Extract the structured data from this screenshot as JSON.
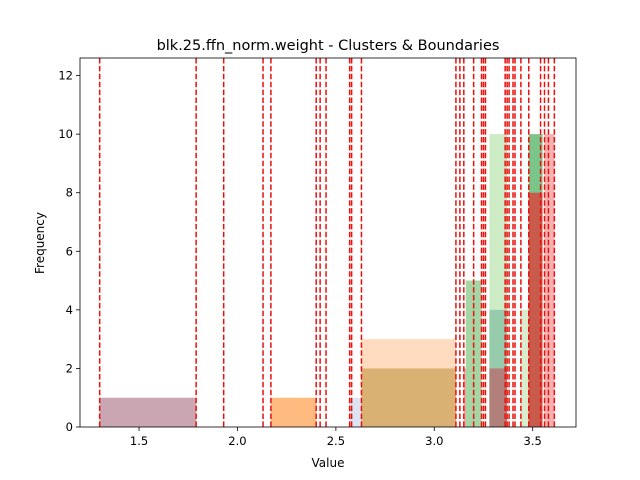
{
  "chart_data": {
    "type": "histogram",
    "title": "blk.25.ffn_norm.weight - Clusters & Boundaries",
    "xlabel": "Value",
    "ylabel": "Frequency",
    "xlim": [
      1.2,
      3.72
    ],
    "ylim": [
      0,
      12.6
    ],
    "x_ticks": [
      1.5,
      2.0,
      2.5,
      3.0,
      3.5
    ],
    "x_tick_labels": [
      "1.5",
      "2.0",
      "2.5",
      "3.0",
      "3.5"
    ],
    "y_ticks": [
      0,
      2,
      4,
      6,
      8,
      10,
      12
    ],
    "y_tick_labels": [
      "0",
      "2",
      "4",
      "6",
      "8",
      "10",
      "12"
    ],
    "grid": false,
    "series": [
      {
        "color": "#c9a6b1",
        "bars": [
          {
            "x0": 1.3,
            "x1": 1.79,
            "y": 1
          }
        ]
      },
      {
        "color": "#ffbb7f",
        "bars": [
          {
            "x0": 2.17,
            "x1": 2.4,
            "y": 1
          }
        ]
      },
      {
        "color": "#dde4f4",
        "bars": [
          {
            "x0": 2.57,
            "x1": 2.63,
            "y": 1
          }
        ]
      },
      {
        "color": "#ffdbbf",
        "bars": [
          {
            "x0": 2.63,
            "x1": 3.11,
            "y": 3
          }
        ]
      },
      {
        "color": "#d9b273",
        "bars": [
          {
            "x0": 2.63,
            "x1": 3.11,
            "y": 2
          }
        ]
      },
      {
        "color": "#f5a6a6",
        "bars": [
          {
            "x0": 3.15,
            "x1": 3.24,
            "y": 2
          }
        ]
      },
      {
        "color": "#a5d6a5",
        "bars": [
          {
            "x0": 3.16,
            "x1": 3.24,
            "y": 5
          }
        ]
      },
      {
        "color": "#cdebc5",
        "bars": [
          {
            "x0": 3.28,
            "x1": 3.37,
            "y": 10
          }
        ]
      },
      {
        "color": "#96cbab",
        "bars": [
          {
            "x0": 3.28,
            "x1": 3.37,
            "y": 4
          }
        ]
      },
      {
        "color": "#b1807b",
        "bars": [
          {
            "x0": 3.28,
            "x1": 3.37,
            "y": 2
          }
        ]
      },
      {
        "color": "#d9eccd",
        "bars": [
          {
            "x0": 3.44,
            "x1": 3.54,
            "y": 4
          }
        ]
      },
      {
        "color": "#7cc58a",
        "bars": [
          {
            "x0": 3.48,
            "x1": 3.55,
            "y": 10
          }
        ]
      },
      {
        "color": "#c95b4d",
        "bars": [
          {
            "x0": 3.48,
            "x1": 3.55,
            "y": 8
          }
        ]
      },
      {
        "color": "#f5b2b2",
        "bars": [
          {
            "x0": 3.56,
            "x1": 3.61,
            "y": 10
          }
        ]
      }
    ],
    "boundaries": {
      "color": "#e8110c",
      "style": "dashed",
      "x": [
        1.3,
        1.79,
        1.93,
        2.13,
        2.17,
        2.4,
        2.42,
        2.45,
        2.57,
        2.58,
        2.63,
        3.11,
        3.13,
        3.15,
        3.2,
        3.24,
        3.25,
        3.26,
        3.36,
        3.37,
        3.38,
        3.4,
        3.41,
        3.44,
        3.48,
        3.54,
        3.56,
        3.58,
        3.61
      ]
    }
  }
}
